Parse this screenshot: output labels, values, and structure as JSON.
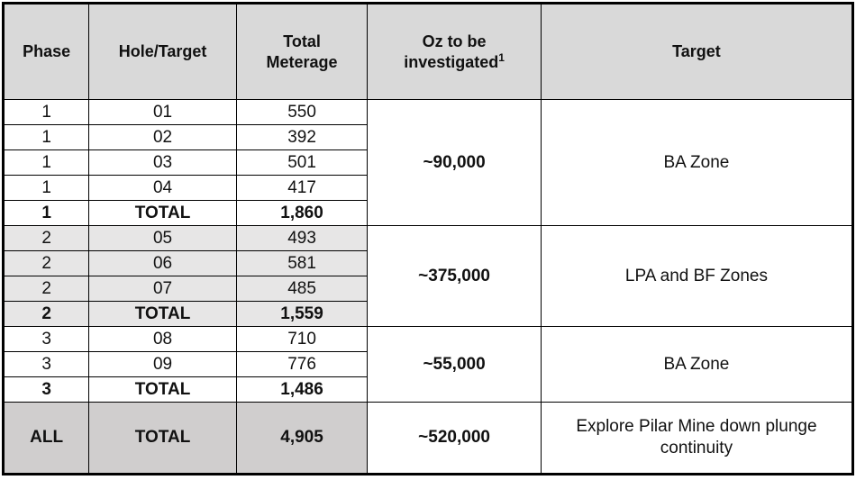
{
  "table": {
    "columns": [
      {
        "label": "Phase"
      },
      {
        "label": "Hole/Target"
      },
      {
        "label": "Total\nMeterage"
      },
      {
        "label": "Oz to be\ninvestigated",
        "superscript": "1"
      },
      {
        "label": "Target"
      }
    ],
    "groups": [
      {
        "shaded": false,
        "rows": [
          {
            "phase": "1",
            "hole": "01",
            "meterage": "550"
          },
          {
            "phase": "1",
            "hole": "02",
            "meterage": "392"
          },
          {
            "phase": "1",
            "hole": "03",
            "meterage": "501"
          },
          {
            "phase": "1",
            "hole": "04",
            "meterage": "417"
          }
        ],
        "total": {
          "phase": "1",
          "hole": "TOTAL",
          "meterage": "1,860"
        },
        "oz": "~90,000",
        "target": "BA Zone"
      },
      {
        "shaded": true,
        "rows": [
          {
            "phase": "2",
            "hole": "05",
            "meterage": "493"
          },
          {
            "phase": "2",
            "hole": "06",
            "meterage": "581"
          },
          {
            "phase": "2",
            "hole": "07",
            "meterage": "485"
          }
        ],
        "total": {
          "phase": "2",
          "hole": "TOTAL",
          "meterage": "1,559"
        },
        "oz": "~375,000",
        "target": "LPA and BF Zones"
      },
      {
        "shaded": false,
        "rows": [
          {
            "phase": "3",
            "hole": "08",
            "meterage": "710"
          },
          {
            "phase": "3",
            "hole": "09",
            "meterage": "776"
          }
        ],
        "total": {
          "phase": "3",
          "hole": "TOTAL",
          "meterage": "1,486"
        },
        "oz": "~55,000",
        "target": "BA Zone"
      }
    ],
    "grand_total": {
      "phase": "ALL",
      "hole": "TOTAL",
      "meterage": "4,905",
      "oz": "~520,000",
      "target": "Explore Pilar Mine down plunge continuity"
    }
  },
  "chart_data": {
    "type": "table",
    "columns": [
      "Phase",
      "Hole/Target",
      "Total Meterage",
      "Oz to be investigated¹",
      "Target"
    ],
    "rows": [
      [
        "1",
        "01",
        "550",
        "~90,000",
        "BA Zone"
      ],
      [
        "1",
        "02",
        "392",
        "~90,000",
        "BA Zone"
      ],
      [
        "1",
        "03",
        "501",
        "~90,000",
        "BA Zone"
      ],
      [
        "1",
        "04",
        "417",
        "~90,000",
        "BA Zone"
      ],
      [
        "1",
        "TOTAL",
        "1,860",
        "~90,000",
        "BA Zone"
      ],
      [
        "2",
        "05",
        "493",
        "~375,000",
        "LPA and BF Zones"
      ],
      [
        "2",
        "06",
        "581",
        "~375,000",
        "LPA and BF Zones"
      ],
      [
        "2",
        "07",
        "485",
        "~375,000",
        "LPA and BF Zones"
      ],
      [
        "2",
        "TOTAL",
        "1,559",
        "~375,000",
        "LPA and BF Zones"
      ],
      [
        "3",
        "08",
        "710",
        "~55,000",
        "BA Zone"
      ],
      [
        "3",
        "09",
        "776",
        "~55,000",
        "BA Zone"
      ],
      [
        "3",
        "TOTAL",
        "1,486",
        "~55,000",
        "BA Zone"
      ],
      [
        "ALL",
        "TOTAL",
        "4,905",
        "~520,000",
        "Explore Pilar Mine down plunge continuity"
      ]
    ],
    "notes": "Oz-to-be-investigated and Target cells are merged vertically per phase group; TOTAL rows and merged Oz values are bold; phase 2 rows and the ALL row are gray-shaded"
  },
  "colors": {
    "header_bg": "#d9d9d9",
    "shaded_row_bg": "#e7e6e6",
    "grand_total_bg": "#d0cece",
    "border": "#000000",
    "text": "#111111",
    "page_bg": "#ffffff"
  }
}
